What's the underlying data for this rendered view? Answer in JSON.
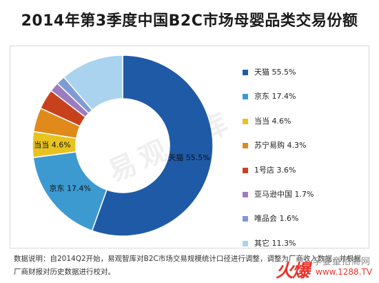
{
  "chart_data": {
    "type": "pie",
    "title": "2014年第3季度中国B2C市场母婴品类交易份额",
    "slices": [
      {
        "name": "天猫",
        "value": 55.5,
        "label": "天猫 55.5%",
        "color": "#1f5aa6"
      },
      {
        "name": "京东",
        "value": 17.4,
        "label": "京东 17.4%",
        "color": "#3d9ad1"
      },
      {
        "name": "当当",
        "value": 4.6,
        "label": "当当 4.6%",
        "color": "#e8c31f"
      },
      {
        "name": "苏宁易购",
        "value": 4.3,
        "label": "苏宁易购 4.3%",
        "color": "#e08a1c"
      },
      {
        "name": "1号店",
        "value": 3.6,
        "label": "1号店 3.6%",
        "color": "#c7421c"
      },
      {
        "name": "亚马逊中国",
        "value": 1.7,
        "label": "亚马逊中国 1.7%",
        "color": "#9b7cc0"
      },
      {
        "name": "唯品会",
        "value": 1.6,
        "label": "唯品会 1.6%",
        "color": "#7f9bd3"
      },
      {
        "name": "其它",
        "value": 11.3,
        "label": "其它 11.3%",
        "color": "#a9d3ee"
      }
    ],
    "slice_labels": [
      {
        "text": "天猫 55.5%"
      },
      {
        "text": "京东 17.4%"
      },
      {
        "text": "当当 4.6%"
      }
    ],
    "legend_position": "right"
  },
  "watermark": "易观智库",
  "note": "数据说明：自2014Q2开始，易观智库对B2C市场交易规模统计口径进行调整，调整为厂商收入数据，并根据厂商财报对历史数据进行校对。",
  "site_logo": {
    "mark": "火爆",
    "name": "孕婴童招商网",
    "url": "www.1288.TV"
  }
}
